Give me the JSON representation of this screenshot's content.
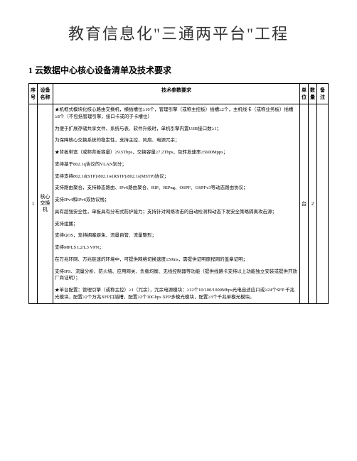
{
  "title": "教育信息化\"三通两平台\"工程",
  "section": "1 云数据中心核心设备清单及技术要求",
  "headers": {
    "index": "序号",
    "name": "设备名称",
    "spec": "技术参数要求",
    "unit": "单位",
    "qty": "数量",
    "note": "备注"
  },
  "rows": [
    {
      "index": "1",
      "name": "核心交换机",
      "specs": [
        "★机框式模块化核心路由交换机，横插槽位≥10个，管理引擎（或称主控板）插槽≥2个，主机线卡（或称业务板）插槽≥8个（不包括管理引擎，接口卡或的子卡槽位）",
        "为便于扩展存储共享文件、系统与表、软件升级时，单机引擎内置USB接口数≥1；",
        "为保障核心交换系统的稳定性，支持主控、风扇、电源冗余；",
        "★背板带宽（或称背板容量）≥9.5Tbps，交换容量≥7.2Tbps，包转发速率≥5600Mpps；",
        "支持基于802.1q协议的VLAN划分；",
        "支持支持802.1d(STP)/802.1w(RSTP)/802.1s(MSTP)协议；",
        "支持路由聚合，支持静态路由、IPv6路由聚合、RIP、RIPng、OSPF、OSPFv3等动态路由协议；",
        "支持IPv4和IPv6双协议栈；",
        "具有超强安全性，单板具有分布式防护能力；支持针对网络攻击的自动检测和动态下发安全策略隔离攻击源；",
        "支持组播；",
        "支持QOS，支持拥塞避免、流量自管、流量整形；",
        "支持MPLS L2/L3 VPN；",
        "在万兆环网、万兆链速的环境中，可提供网络切换速度≤50ms，需提供证明原程网的盖章证明；",
        "支持IPS、流量分析、防火墙、应用网关、负载均衡、无线控制器等功能（提供线路卡支持以上功能独立安装或提供开放厂商证明）；",
        "★单台配置：管理引擎（或称主控）≥1（冗余），冗余电源模块：≥12个10/100/1000Mbps光电自适应口或≥24个SFP 千兆光模块，配置≥2个万兆XFP口插槽，配置≥2个10Gbps XFP多模光模块，配置≥3个千兆单模光模块。"
      ],
      "unit": "台",
      "qty": "2",
      "note": ""
    }
  ]
}
